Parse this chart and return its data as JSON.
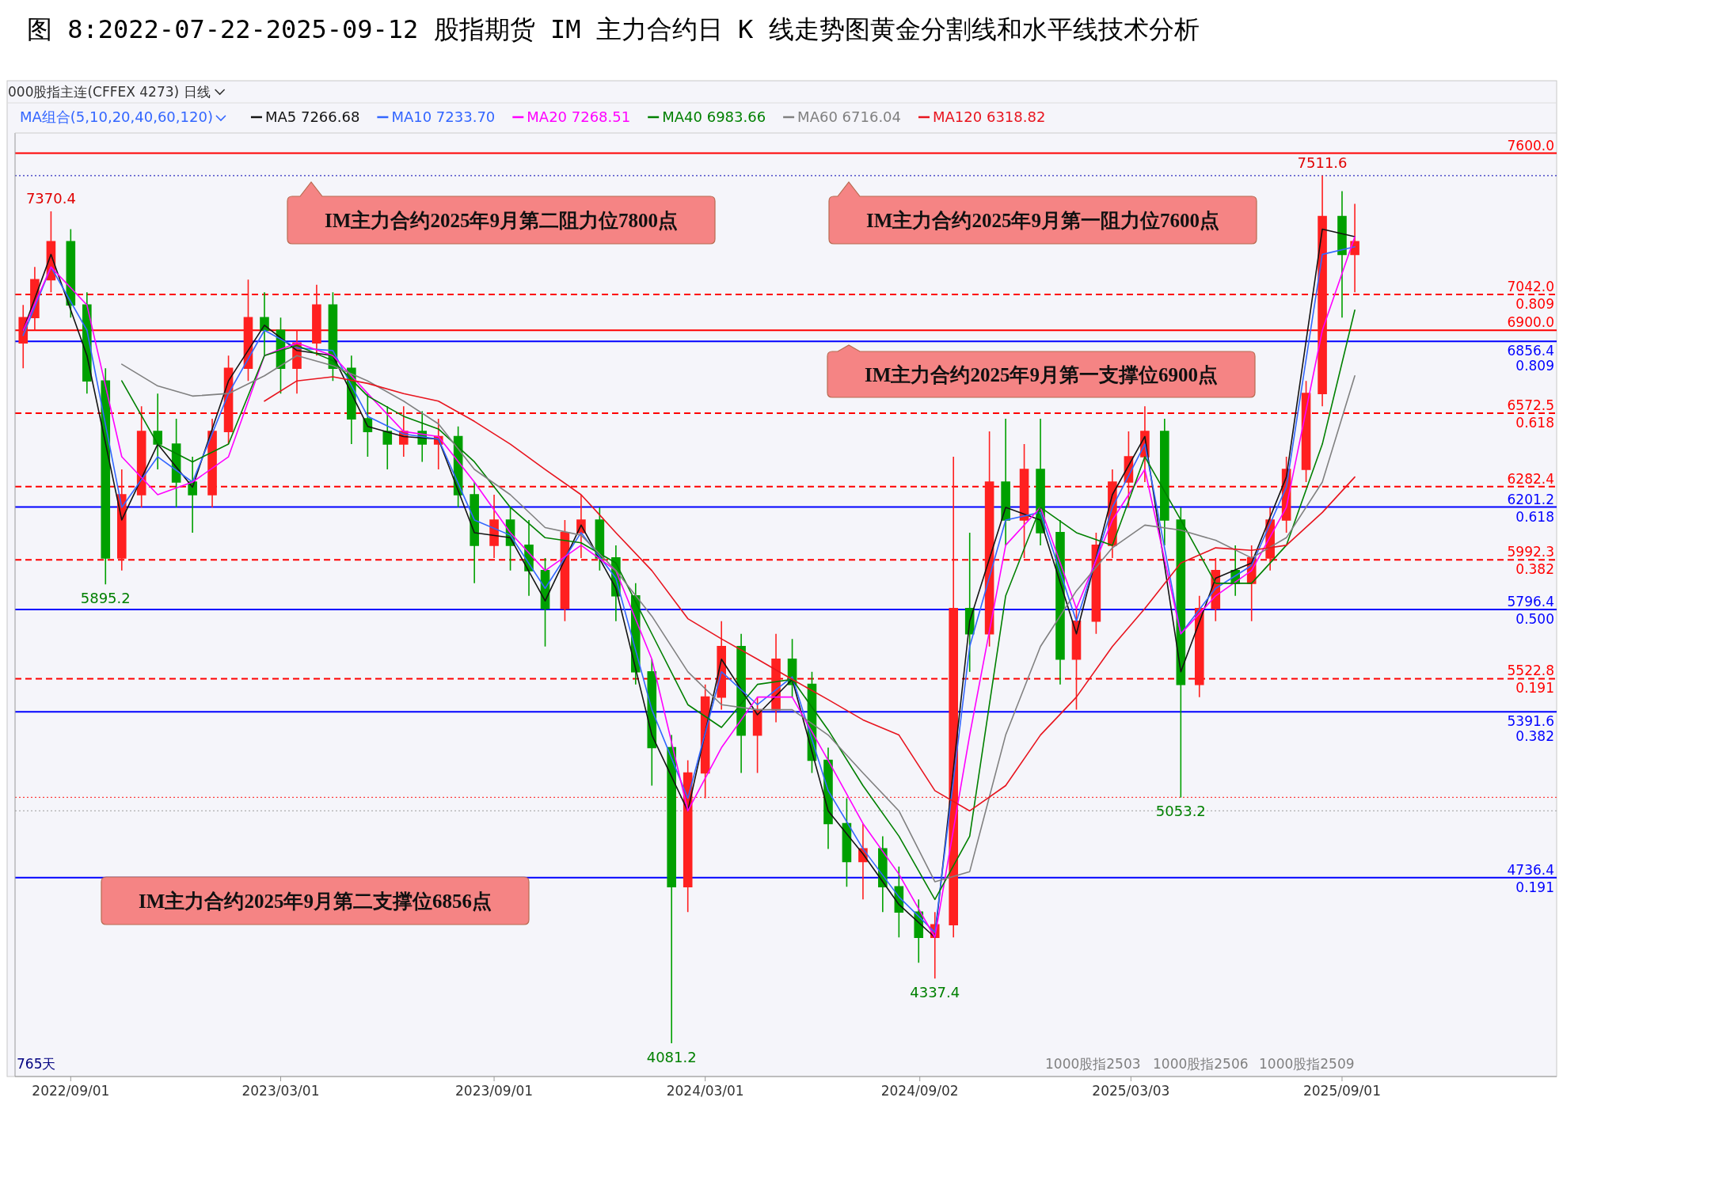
{
  "chart_data": {
    "type": "candlestick",
    "title": "图 8:2022-07-22-2025-09-12 股指期货 IM 主力合约日 K 线走势图黄金分割线和水平线技术分析",
    "subtitle": "000股指主连(CFFEX 4273)  日线",
    "legend_title": "MA组合(5,10,20,40,60,120)",
    "legend": "top left",
    "tick_labels": "x",
    "xlim": [
      "2022-07-15",
      "2026-03-05"
    ],
    "xticks": [
      {
        "value": "2022-09-01",
        "label": "2022/09/01"
      },
      {
        "value": "2023-03-01",
        "label": "2023/03/01"
      },
      {
        "value": "2023-09-01",
        "label": "2023/09/01"
      },
      {
        "value": "2024-03-01",
        "label": "2024/03/01"
      },
      {
        "value": "2024-09-02",
        "label": "2024/09/02"
      },
      {
        "value": "2025-03-03",
        "label": "2025/03/03"
      },
      {
        "value": "2025-09-01",
        "label": "2025/09/01"
      }
    ],
    "ylim": [
      3950,
      7680
    ],
    "x": [
      "2022-07-22",
      "2022-08-01",
      "2022-08-15",
      "2022-09-01",
      "2022-09-15",
      "2022-10-01",
      "2022-10-15",
      "2022-11-01",
      "2022-11-15",
      "2022-12-01",
      "2022-12-15",
      "2023-01-01",
      "2023-01-15",
      "2023-02-01",
      "2023-02-15",
      "2023-03-01",
      "2023-03-15",
      "2023-04-01",
      "2023-04-15",
      "2023-05-01",
      "2023-05-15",
      "2023-06-01",
      "2023-06-15",
      "2023-07-01",
      "2023-07-15",
      "2023-08-01",
      "2023-08-15",
      "2023-09-01",
      "2023-09-15",
      "2023-10-01",
      "2023-10-15",
      "2023-11-01",
      "2023-11-15",
      "2023-12-01",
      "2023-12-15",
      "2024-01-01",
      "2024-01-15",
      "2024-02-01",
      "2024-02-15",
      "2024-03-01",
      "2024-03-15",
      "2024-04-01",
      "2024-04-15",
      "2024-05-01",
      "2024-05-15",
      "2024-06-01",
      "2024-06-15",
      "2024-07-01",
      "2024-07-15",
      "2024-08-01",
      "2024-08-15",
      "2024-09-01",
      "2024-09-15",
      "2024-10-01",
      "2024-10-15",
      "2024-11-01",
      "2024-11-15",
      "2024-12-01",
      "2024-12-15",
      "2025-01-01",
      "2025-01-15",
      "2025-02-01",
      "2025-02-15",
      "2025-03-01",
      "2025-03-15",
      "2025-04-01",
      "2025-04-15",
      "2025-05-01",
      "2025-05-15",
      "2025-06-01",
      "2025-06-15",
      "2025-07-01",
      "2025-07-15",
      "2025-08-01",
      "2025-08-15",
      "2025-09-01",
      "2025-09-12"
    ],
    "ohlc": [
      [
        6850,
        7000,
        6750,
        6950
      ],
      [
        6950,
        7150,
        6900,
        7100
      ],
      [
        7100,
        7370.4,
        7050,
        7250
      ],
      [
        7250,
        7300,
        6950,
        7000
      ],
      [
        7000,
        7050,
        6650,
        6700
      ],
      [
        6700,
        6750,
        5895.2,
        6000
      ],
      [
        6000,
        6350,
        5950,
        6250
      ],
      [
        6250,
        6600,
        6200,
        6500
      ],
      [
        6500,
        6650,
        6350,
        6450
      ],
      [
        6450,
        6550,
        6200,
        6300
      ],
      [
        6300,
        6400,
        6100,
        6250
      ],
      [
        6250,
        6550,
        6200,
        6500
      ],
      [
        6500,
        6800,
        6450,
        6750
      ],
      [
        6750,
        7100,
        6700,
        6950
      ],
      [
        6950,
        7050,
        6800,
        6900
      ],
      [
        6900,
        6950,
        6650,
        6750
      ],
      [
        6750,
        6900,
        6650,
        6850
      ],
      [
        6850,
        7080,
        6800,
        7000
      ],
      [
        7000,
        7050,
        6700,
        6750
      ],
      [
        6750,
        6800,
        6450,
        6550
      ],
      [
        6550,
        6650,
        6400,
        6500
      ],
      [
        6500,
        6600,
        6350,
        6450
      ],
      [
        6450,
        6600,
        6400,
        6500
      ],
      [
        6500,
        6580,
        6380,
        6450
      ],
      [
        6450,
        6550,
        6350,
        6480
      ],
      [
        6480,
        6520,
        6200,
        6250
      ],
      [
        6250,
        6300,
        5900,
        6050
      ],
      [
        6050,
        6250,
        6000,
        6150
      ],
      [
        6150,
        6200,
        5950,
        6050
      ],
      [
        6050,
        6150,
        5850,
        5950
      ],
      [
        5950,
        6000,
        5650,
        5800
      ],
      [
        5800,
        6150,
        5750,
        6100
      ],
      [
        6100,
        6250,
        6000,
        6150
      ],
      [
        6150,
        6200,
        5950,
        6000
      ],
      [
        6000,
        6050,
        5750,
        5850
      ],
      [
        5850,
        5900,
        5500,
        5550
      ],
      [
        5550,
        5600,
        5100,
        5250
      ],
      [
        5250,
        5300,
        4081.2,
        4700
      ],
      [
        4700,
        5200,
        4600,
        5150
      ],
      [
        5150,
        5500,
        5050,
        5450
      ],
      [
        5450,
        5750,
        5400,
        5650
      ],
      [
        5650,
        5700,
        5150,
        5300
      ],
      [
        5300,
        5450,
        5150,
        5400
      ],
      [
        5400,
        5700,
        5350,
        5600
      ],
      [
        5600,
        5680,
        5450,
        5500
      ],
      [
        5500,
        5550,
        5150,
        5200
      ],
      [
        5200,
        5250,
        4850,
        4950
      ],
      [
        4950,
        5050,
        4700,
        4800
      ],
      [
        4800,
        4950,
        4650,
        4850
      ],
      [
        4850,
        4900,
        4600,
        4700
      ],
      [
        4700,
        4780,
        4500,
        4600
      ],
      [
        4600,
        4650,
        4400,
        4500
      ],
      [
        4500,
        4600,
        4337.4,
        4550
      ],
      [
        4550,
        6400,
        4500,
        5800
      ],
      [
        5800,
        6100,
        5550,
        5700
      ],
      [
        5700,
        6500,
        5650,
        6300
      ],
      [
        6300,
        6550,
        6050,
        6150
      ],
      [
        6150,
        6450,
        6000,
        6350
      ],
      [
        6350,
        6550,
        6050,
        6100
      ],
      [
        6100,
        6150,
        5500,
        5600
      ],
      [
        5600,
        5800,
        5400,
        5750
      ],
      [
        5750,
        6100,
        5700,
        6050
      ],
      [
        6050,
        6350,
        6000,
        6300
      ],
      [
        6300,
        6500,
        6200,
        6400
      ],
      [
        6400,
        6600,
        6300,
        6500
      ],
      [
        6500,
        6550,
        6050,
        6150
      ],
      [
        6150,
        6200,
        5053.2,
        5500
      ],
      [
        5500,
        5850,
        5450,
        5800
      ],
      [
        5800,
        6000,
        5750,
        5950
      ],
      [
        5950,
        6050,
        5850,
        5900
      ],
      [
        5900,
        6050,
        5750,
        6000
      ],
      [
        6000,
        6200,
        5950,
        6150
      ],
      [
        6150,
        6400,
        6100,
        6350
      ],
      [
        6350,
        6700,
        6300,
        6650
      ],
      [
        6650,
        7511.6,
        6600,
        7350
      ],
      [
        7350,
        7450,
        6950,
        7200
      ],
      [
        7200,
        7400,
        7050,
        7250
      ]
    ],
    "colors": [
      "#ff2020",
      "#ff2020",
      "#ff2020",
      "#00a000",
      "#00a000",
      "#00a000",
      "#ff2020",
      "#ff2020",
      "#00a000",
      "#00a000",
      "#00a000",
      "#ff2020",
      "#ff2020",
      "#ff2020",
      "#00a000",
      "#00a000",
      "#ff2020",
      "#ff2020",
      "#00a000",
      "#00a000",
      "#00a000",
      "#00a000",
      "#ff2020",
      "#00a000",
      "#ff2020",
      "#00a000",
      "#00a000",
      "#ff2020",
      "#00a000",
      "#00a000",
      "#00a000",
      "#ff2020",
      "#ff2020",
      "#00a000",
      "#00a000",
      "#00a000",
      "#00a000",
      "#00a000",
      "#ff2020",
      "#ff2020",
      "#ff2020",
      "#00a000",
      "#ff2020",
      "#ff2020",
      "#00a000",
      "#00a000",
      "#00a000",
      "#00a000",
      "#ff2020",
      "#00a000",
      "#00a000",
      "#00a000",
      "#ff2020",
      "#ff2020",
      "#00a000",
      "#ff2020",
      "#00a000",
      "#ff2020",
      "#00a000",
      "#00a000",
      "#ff2020",
      "#ff2020",
      "#ff2020",
      "#ff2020",
      "#ff2020",
      "#00a000",
      "#00a000",
      "#ff2020",
      "#ff2020",
      "#00a000",
      "#ff2020",
      "#ff2020",
      "#ff2020",
      "#ff2020",
      "#ff2020",
      "#00a000",
      "#ff2020"
    ],
    "series": [
      {
        "type": "line",
        "name": "MA5 7266.68",
        "color": "#141414",
        "x": [
          "2022-07-22",
          "2022-08-15",
          "2022-09-15",
          "2022-10-15",
          "2022-11-15",
          "2022-12-15",
          "2023-01-15",
          "2023-02-15",
          "2023-03-15",
          "2023-04-15",
          "2023-05-15",
          "2023-06-15",
          "2023-07-15",
          "2023-08-15",
          "2023-09-15",
          "2023-10-15",
          "2023-11-15",
          "2023-12-15",
          "2024-01-15",
          "2024-02-15",
          "2024-03-15",
          "2024-04-15",
          "2024-05-15",
          "2024-06-15",
          "2024-07-15",
          "2024-08-15",
          "2024-09-15",
          "2024-10-15",
          "2024-11-15",
          "2024-12-15",
          "2025-01-15",
          "2025-02-15",
          "2025-03-15",
          "2025-04-15",
          "2025-05-15",
          "2025-06-15",
          "2025-07-15",
          "2025-08-15",
          "2025-09-12"
        ],
        "values": [
          6900,
          7200,
          6800,
          6150,
          6450,
          6280,
          6700,
          6920,
          6820,
          6800,
          6520,
          6480,
          6470,
          6100,
          6080,
          5830,
          6130,
          5880,
          5300,
          5000,
          5600,
          5380,
          5520,
          5000,
          4830,
          4630,
          4500,
          5750,
          6200,
          6150,
          5700,
          6250,
          6480,
          5550,
          5920,
          5980,
          6320,
          7300,
          7270
        ]
      },
      {
        "type": "line",
        "name": "MA10 7233.70",
        "color": "#3366ff",
        "x": [
          "2022-07-22",
          "2022-08-15",
          "2022-09-15",
          "2022-10-15",
          "2022-11-15",
          "2022-12-15",
          "2023-01-15",
          "2023-02-15",
          "2023-03-15",
          "2023-04-15",
          "2023-05-15",
          "2023-06-15",
          "2023-07-15",
          "2023-08-15",
          "2023-09-15",
          "2023-10-15",
          "2023-11-15",
          "2023-12-15",
          "2024-01-15",
          "2024-02-15",
          "2024-03-15",
          "2024-04-15",
          "2024-05-15",
          "2024-06-15",
          "2024-07-15",
          "2024-08-15",
          "2024-09-15",
          "2024-10-15",
          "2024-11-15",
          "2024-12-15",
          "2025-01-15",
          "2025-02-15",
          "2025-03-15",
          "2025-04-15",
          "2025-05-15",
          "2025-06-15",
          "2025-07-15",
          "2025-08-15",
          "2025-09-12"
        ],
        "values": [
          6880,
          7150,
          6900,
          6200,
          6400,
          6300,
          6650,
          6900,
          6830,
          6820,
          6560,
          6490,
          6470,
          6150,
          6090,
          5880,
          6100,
          5920,
          5400,
          5050,
          5550,
          5420,
          5530,
          5080,
          4850,
          4660,
          4520,
          5650,
          6150,
          6180,
          5750,
          6200,
          6450,
          5700,
          5880,
          5970,
          6280,
          7200,
          7230
        ]
      },
      {
        "type": "line",
        "name": "MA20 7268.51",
        "color": "#ff00ff",
        "x": [
          "2022-07-22",
          "2022-08-15",
          "2022-09-15",
          "2022-10-15",
          "2022-11-15",
          "2022-12-15",
          "2023-01-15",
          "2023-02-15",
          "2023-03-15",
          "2023-04-15",
          "2023-05-15",
          "2023-06-15",
          "2023-07-15",
          "2023-08-15",
          "2023-09-15",
          "2023-10-15",
          "2023-11-15",
          "2023-12-15",
          "2024-01-15",
          "2024-02-15",
          "2024-03-15",
          "2024-04-15",
          "2024-05-15",
          "2024-06-15",
          "2024-07-15",
          "2024-08-15",
          "2024-09-15",
          "2024-10-15",
          "2024-11-15",
          "2024-12-15",
          "2025-01-15",
          "2025-02-15",
          "2025-03-15",
          "2025-04-15",
          "2025-05-15",
          "2025-06-15",
          "2025-07-15",
          "2025-08-15",
          "2025-09-12"
        ],
        "values": [
          6900,
          7150,
          7000,
          6400,
          6250,
          6300,
          6400,
          6800,
          6850,
          6800,
          6650,
          6500,
          6480,
          6300,
          6100,
          5950,
          6050,
          5950,
          5600,
          5000,
          5250,
          5450,
          5450,
          5200,
          4950,
          4750,
          4500,
          5300,
          6050,
          6200,
          5800,
          6150,
          6350,
          5700,
          5850,
          5950,
          6200,
          6900,
          7270
        ]
      },
      {
        "type": "line",
        "name": "MA40 6983.66",
        "color": "#008000",
        "x": [
          "2022-10-15",
          "2022-11-15",
          "2022-12-15",
          "2023-01-15",
          "2023-02-15",
          "2023-03-15",
          "2023-04-15",
          "2023-05-15",
          "2023-06-15",
          "2023-07-15",
          "2023-08-15",
          "2023-09-15",
          "2023-10-15",
          "2023-11-15",
          "2023-12-15",
          "2024-01-15",
          "2024-02-15",
          "2024-03-15",
          "2024-04-15",
          "2024-05-15",
          "2024-06-15",
          "2024-07-15",
          "2024-08-15",
          "2024-09-15",
          "2024-10-15",
          "2024-11-15",
          "2024-12-15",
          "2025-01-15",
          "2025-02-15",
          "2025-03-15",
          "2025-04-15",
          "2025-05-15",
          "2025-06-15",
          "2025-07-15",
          "2025-08-15",
          "2025-09-12"
        ],
        "values": [
          6700,
          6450,
          6380,
          6450,
          6800,
          6840,
          6780,
          6640,
          6560,
          6510,
          6380,
          6200,
          6080,
          6060,
          5980,
          5700,
          5420,
          5330,
          5500,
          5520,
          5320,
          5100,
          4900,
          4650,
          4900,
          5850,
          6200,
          6100,
          6050,
          6400,
          6150,
          5900,
          5900,
          6050,
          6450,
          6980
        ]
      },
      {
        "type": "line",
        "name": "MA60 6716.04",
        "color": "#808080",
        "x": [
          "2022-10-15",
          "2022-11-15",
          "2022-12-15",
          "2023-01-15",
          "2023-02-15",
          "2023-03-15",
          "2023-04-15",
          "2023-05-15",
          "2023-06-15",
          "2023-07-15",
          "2023-08-15",
          "2023-09-15",
          "2023-10-15",
          "2023-11-15",
          "2023-12-15",
          "2024-01-15",
          "2024-02-15",
          "2024-03-15",
          "2024-04-15",
          "2024-05-15",
          "2024-06-15",
          "2024-07-15",
          "2024-08-15",
          "2024-09-15",
          "2024-10-15",
          "2024-11-15",
          "2024-12-15",
          "2025-01-15",
          "2025-02-15",
          "2025-03-15",
          "2025-04-15",
          "2025-05-15",
          "2025-06-15",
          "2025-07-15",
          "2025-08-15",
          "2025-09-12"
        ],
        "values": [
          6766,
          6680,
          6640,
          6650,
          6720,
          6800,
          6760,
          6700,
          6620,
          6530,
          6350,
          6250,
          6120,
          6090,
          5950,
          5770,
          5550,
          5420,
          5400,
          5400,
          5300,
          5150,
          5000,
          4720,
          4760,
          5300,
          5650,
          5870,
          6040,
          6130,
          6110,
          6070,
          6000,
          6080,
          6300,
          6720
        ]
      },
      {
        "type": "line",
        "name": "MA120 6318.82",
        "color": "#e8141e",
        "x": [
          "2023-02-15",
          "2023-03-15",
          "2023-04-15",
          "2023-05-15",
          "2023-06-15",
          "2023-07-15",
          "2023-08-15",
          "2023-09-15",
          "2023-10-15",
          "2023-11-15",
          "2023-12-15",
          "2024-01-15",
          "2024-02-15",
          "2024-03-15",
          "2024-04-15",
          "2024-05-15",
          "2024-06-15",
          "2024-07-15",
          "2024-08-15",
          "2024-09-15",
          "2024-10-15",
          "2024-11-15",
          "2024-12-15",
          "2025-01-15",
          "2025-02-15",
          "2025-03-15",
          "2025-04-15",
          "2025-05-15",
          "2025-06-15",
          "2025-07-15",
          "2025-08-15",
          "2025-09-12"
        ],
        "values": [
          6620,
          6700,
          6716,
          6690,
          6650,
          6620,
          6540,
          6450,
          6350,
          6250,
          6100,
          5950,
          5760,
          5680,
          5600,
          5520,
          5440,
          5360,
          5300,
          5080,
          5000,
          5100,
          5300,
          5450,
          5650,
          5800,
          5980,
          6040,
          6030,
          6050,
          6180,
          6320
        ]
      }
    ],
    "ref_lines": [
      {
        "axis": "y",
        "value": 7600.0,
        "label": "7600.0",
        "color": "#ff0000",
        "line_style": "solid"
      },
      {
        "axis": "y",
        "value": 7511.6,
        "color": "#3030c0",
        "line_style": "dotted"
      },
      {
        "axis": "y",
        "value": 7042.0,
        "label": "7042.0\n0.809",
        "color": "#ff0000",
        "line_style": "dashed"
      },
      {
        "axis": "y",
        "value": 6900.0,
        "label": "6900.0",
        "color": "#ff0000",
        "line_style": "solid"
      },
      {
        "axis": "y",
        "value": 6856.4,
        "label": "6856.4\n0.809",
        "color": "#0000ff",
        "line_style": "solid"
      },
      {
        "axis": "y",
        "value": 6572.5,
        "label": "6572.5\n0.618",
        "color": "#ff0000",
        "line_style": "dashed"
      },
      {
        "axis": "y",
        "value": 6282.4,
        "label": "6282.4",
        "color": "#ff0000",
        "line_style": "dashed"
      },
      {
        "axis": "y",
        "value": 6201.2,
        "label": "6201.2\n0.618",
        "color": "#0000ff",
        "line_style": "solid"
      },
      {
        "axis": "y",
        "value": 5992.3,
        "label": "5992.3\n0.382",
        "color": "#ff0000",
        "line_style": "dashed"
      },
      {
        "axis": "y",
        "value": 5796.4,
        "label": "5796.4\n0.500",
        "color": "#0000ff",
        "line_style": "solid"
      },
      {
        "axis": "y",
        "value": 5522.8,
        "label": "5522.8\n0.191",
        "color": "#ff0000",
        "line_style": "dashed"
      },
      {
        "axis": "y",
        "value": 5391.6,
        "label": "5391.6\n0.382",
        "color": "#0000ff",
        "line_style": "solid"
      },
      {
        "axis": "y",
        "value": 5053.2,
        "color": "#ff4040",
        "line_style": "dotted"
      },
      {
        "axis": "y",
        "value": 5000,
        "color": "#b0b0b0",
        "line_style": "dotted"
      },
      {
        "axis": "y",
        "value": 4736.4,
        "label": "4736.4\n0.191",
        "color": "#0000ff",
        "line_style": "solid"
      }
    ],
    "annotations": [
      "IM主力合约2025年9月第二阻力位7800点",
      "IM主力合约2025年9月第一阻力位7600点",
      "IM主力合约2025年9月第二支撑位6856点",
      "IM主力合约2025年9月第一支撑位6900点",
      {
        "text": "7370.4",
        "x": "2022-08-15",
        "y": 7370.4
      },
      {
        "text": "5895.2",
        "x": "2022-10-01",
        "y": 5895.2
      },
      {
        "text": "4081.2",
        "x": "2024-02-01",
        "y": 4081.2
      },
      {
        "text": "4337.4",
        "x": "2024-09-15",
        "y": 4337.4
      },
      {
        "text": "5053.2",
        "x": "2025-04-15",
        "y": 5053.2
      },
      {
        "text": "7511.6",
        "x": "2025-08-15",
        "y": 7511.6
      },
      "765天",
      "1000股指2503",
      "1000股指2506",
      "1000股指2509"
    ]
  }
}
